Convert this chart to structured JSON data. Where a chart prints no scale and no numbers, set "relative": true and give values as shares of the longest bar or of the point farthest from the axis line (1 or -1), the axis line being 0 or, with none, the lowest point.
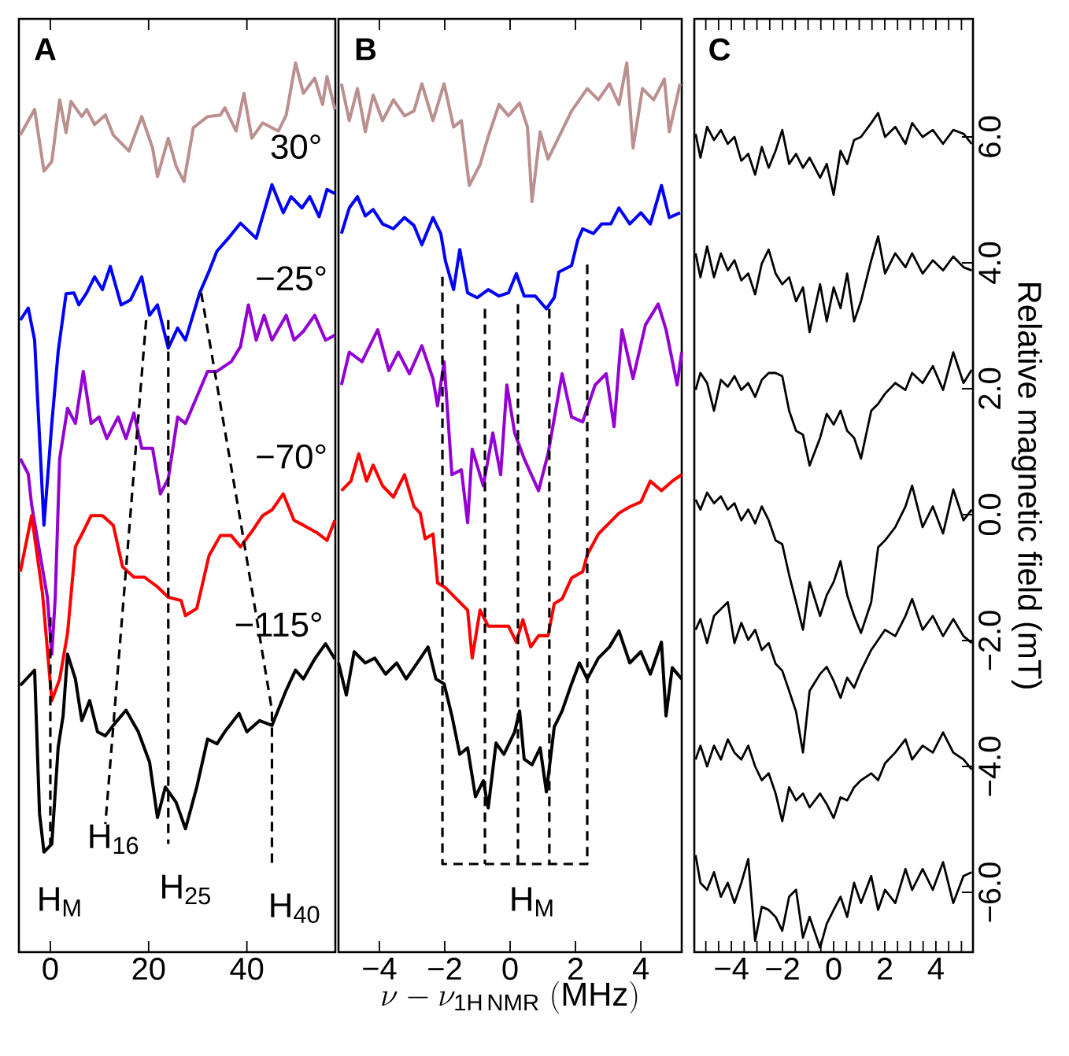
{
  "chart_data": [
    {
      "type": "line",
      "title": "A",
      "relative": true,
      "tick_labels": "x",
      "xlim": [
        -6.4,
        58
      ],
      "xticks": [
        0,
        20,
        40
      ],
      "series": [
        {
          "color": "#bc8f8f",
          "x": [
            -6.1,
            -3.2,
            -1.3,
            0.3,
            1.9,
            3.2,
            4.2,
            6.4,
            7.4,
            9.0,
            11.2,
            12.8,
            16.0,
            18.6,
            20.8,
            21.8,
            24.0,
            25.6,
            27.2,
            29.1,
            32.0,
            34.6,
            35.5,
            37.8,
            39.4,
            41.0,
            43.2,
            46.4,
            48.0,
            49.9,
            51.5,
            53.8,
            55.4,
            56.3,
            57.9
          ],
          "values": [
            0.91,
            0.942,
            0.865,
            0.877,
            0.954,
            0.913,
            0.952,
            0.933,
            0.942,
            0.923,
            0.935,
            0.91,
            0.89,
            0.933,
            0.894,
            0.858,
            0.906,
            0.871,
            0.852,
            0.919,
            0.933,
            0.935,
            0.944,
            0.915,
            0.962,
            0.906,
            0.925,
            0.915,
            0.935,
            1.0,
            0.962,
            0.981,
            0.948,
            0.983,
            0.942
          ]
        },
        {
          "color": "#0000ff",
          "x": [
            -6.1,
            -4.5,
            -3.2,
            -1.3,
            0.3,
            1.6,
            3.2,
            4.8,
            5.8,
            7.4,
            9.0,
            10.6,
            12.2,
            14.4,
            16.3,
            18.6,
            20.2,
            21.8,
            24.0,
            25.9,
            27.5,
            30.4,
            32.3,
            33.9,
            36.2,
            38.7,
            41.9,
            45.1,
            47.4,
            49.0,
            51.2,
            52.8,
            54.7,
            56.3,
            57.9
          ],
          "values": [
            0.679,
            0.694,
            0.654,
            0.423,
            0.55,
            0.64,
            0.712,
            0.713,
            0.698,
            0.713,
            0.733,
            0.717,
            0.746,
            0.698,
            0.704,
            0.733,
            0.685,
            0.698,
            0.644,
            0.669,
            0.654,
            0.713,
            0.74,
            0.765,
            0.781,
            0.8,
            0.781,
            0.848,
            0.813,
            0.833,
            0.819,
            0.833,
            0.808,
            0.842,
            0.837
          ]
        },
        {
          "color": "#9400d3",
          "x": [
            -6.1,
            -4.5,
            -3.8,
            -0.6,
            0.3,
            1.0,
            1.9,
            3.5,
            5.1,
            6.7,
            8.3,
            9.9,
            11.5,
            13.8,
            15.4,
            17.0,
            18.6,
            20.8,
            22.4,
            24.0,
            25.9,
            27.5,
            29.8,
            32.0,
            33.9,
            36.8,
            38.7,
            40.3,
            41.9,
            43.5,
            45.1,
            48.0,
            49.6,
            51.5,
            53.8,
            56.0,
            57.9
          ],
          "values": [
            0.506,
            0.487,
            0.448,
            0.333,
            0.262,
            0.333,
            0.506,
            0.569,
            0.55,
            0.615,
            0.55,
            0.558,
            0.531,
            0.558,
            0.531,
            0.563,
            0.519,
            0.519,
            0.462,
            0.481,
            0.558,
            0.55,
            0.583,
            0.615,
            0.615,
            0.627,
            0.646,
            0.698,
            0.654,
            0.685,
            0.654,
            0.685,
            0.654,
            0.665,
            0.685,
            0.654,
            0.66
          ]
        },
        {
          "color": "#ff0000",
          "x": [
            -6.1,
            -3.8,
            -1.6,
            0.3,
            1.9,
            3.5,
            5.1,
            6.7,
            8.3,
            10.6,
            12.8,
            14.7,
            17.0,
            19.2,
            21.8,
            24.0,
            26.6,
            27.5,
            29.8,
            32.3,
            34.6,
            36.8,
            38.7,
            41.0,
            43.2,
            45.1,
            47.4,
            49.6,
            51.5,
            54.4,
            56.3,
            57.9
          ],
          "values": [
            0.365,
            0.435,
            0.338,
            0.204,
            0.231,
            0.288,
            0.396,
            0.415,
            0.435,
            0.435,
            0.423,
            0.371,
            0.358,
            0.358,
            0.346,
            0.333,
            0.329,
            0.31,
            0.319,
            0.385,
            0.41,
            0.41,
            0.396,
            0.415,
            0.435,
            0.442,
            0.462,
            0.429,
            0.423,
            0.413,
            0.404,
            0.429
          ]
        },
        {
          "color": "#000000",
          "x": [
            -6.1,
            -3.2,
            -2.2,
            -1.3,
            0.3,
            1.6,
            2.6,
            3.5,
            5.1,
            6.4,
            8.0,
            9.6,
            11.2,
            12.8,
            15.4,
            17.9,
            20.2,
            21.8,
            23.4,
            25.6,
            27.5,
            29.8,
            32.0,
            33.9,
            35.5,
            38.4,
            40.0,
            42.6,
            45.1,
            48.0,
            49.9,
            51.5,
            53.8,
            56.0,
            57.9
          ],
          "values": [
            0.223,
            0.242,
            0.063,
            0.015,
            0.025,
            0.146,
            0.185,
            0.262,
            0.231,
            0.179,
            0.204,
            0.165,
            0.16,
            0.173,
            0.192,
            0.165,
            0.127,
            0.058,
            0.096,
            0.077,
            0.044,
            0.096,
            0.156,
            0.15,
            0.165,
            0.188,
            0.165,
            0.179,
            0.173,
            0.217,
            0.242,
            0.231,
            0.256,
            0.275,
            0.256
          ]
        },
        {
          "color": "#000000",
          "line_style": "dashed",
          "x": [
            0,
            0
          ],
          "values": [
            0.308,
            0.025
          ]
        },
        {
          "color": "#000000",
          "line_style": "dashed",
          "x": [
            19.5,
            11.2
          ],
          "values": [
            0.679,
            0.05
          ]
        },
        {
          "color": "#000000",
          "line_style": "dashed",
          "x": [
            24,
            24
          ],
          "values": [
            0.679,
            0.025
          ]
        },
        {
          "color": "#000000",
          "line_style": "dashed",
          "x": [
            30.7,
            38.7,
            45.1,
            45.1
          ],
          "values": [
            0.713,
            0.428,
            0.192,
            0
          ]
        }
      ],
      "annotations": [
        "30°",
        "−25°",
        "−70°",
        "−115°",
        "H$_{M}$",
        "H$_{16}$",
        "H$_{25}$",
        "H$_{40}$"
      ]
    },
    {
      "type": "line",
      "title": "B",
      "relative": true,
      "tick_labels": "x",
      "xlim": [
        -5.25,
        5.25
      ],
      "xlabel": "\\nu-\\nu_{\\mathrm{1H\\,NMR}}\\ (\\mathrm{MHz})",
      "xticks": [
        {
          "value": -4,
          "label": "−4"
        },
        {
          "value": -2,
          "label": "−2"
        },
        0,
        2,
        4
      ],
      "series": [
        {
          "color": "#bc8f8f",
          "x": [
            -5.16,
            -4.92,
            -4.67,
            -4.43,
            -4.19,
            -3.9,
            -3.57,
            -3.23,
            -2.94,
            -2.7,
            -2.36,
            -2.02,
            -1.73,
            -1.49,
            -1.25,
            -0.92,
            -0.67,
            -0.34,
            -0.05,
            0.29,
            0.53,
            0.67,
            0.92,
            1.16,
            1.4,
            1.88,
            2.36,
            2.7,
            3.04,
            3.33,
            3.57,
            3.76,
            4.05,
            4.39,
            4.72,
            4.87,
            5.2
          ],
          "values": [
            0.974,
            0.928,
            0.968,
            0.914,
            0.96,
            0.928,
            0.954,
            0.934,
            0.94,
            0.974,
            0.928,
            0.974,
            0.92,
            0.928,
            0.847,
            0.873,
            0.908,
            0.948,
            0.934,
            0.95,
            0.92,
            0.827,
            0.914,
            0.88,
            0.9,
            0.94,
            0.968,
            0.954,
            0.974,
            0.948,
            1.0,
            0.894,
            0.968,
            0.954,
            0.98,
            0.914,
            0.974
          ]
        },
        {
          "color": "#0000ff",
          "x": [
            -5.16,
            -4.92,
            -4.67,
            -4.43,
            -4.19,
            -3.9,
            -3.57,
            -3.23,
            -2.94,
            -2.7,
            -2.36,
            -2.12,
            -1.98,
            -1.73,
            -1.54,
            -1.3,
            -1.01,
            -0.67,
            -0.34,
            -0.05,
            0.19,
            0.43,
            0.77,
            1.11,
            1.35,
            1.49,
            1.88,
            2.07,
            2.22,
            2.55,
            2.8,
            3.08,
            3.33,
            3.66,
            4.0,
            4.29,
            4.63,
            4.87,
            5.2
          ],
          "values": [
            0.787,
            0.819,
            0.833,
            0.809,
            0.817,
            0.799,
            0.793,
            0.807,
            0.797,
            0.773,
            0.807,
            0.787,
            0.753,
            0.717,
            0.767,
            0.713,
            0.707,
            0.717,
            0.709,
            0.713,
            0.737,
            0.709,
            0.709,
            0.693,
            0.707,
            0.739,
            0.747,
            0.779,
            0.793,
            0.787,
            0.799,
            0.799,
            0.819,
            0.799,
            0.813,
            0.799,
            0.847,
            0.807,
            0.813
          ]
        },
        {
          "color": "#9400d3",
          "x": [
            -5.16,
            -4.92,
            -4.53,
            -4.05,
            -3.71,
            -3.42,
            -3.08,
            -2.7,
            -2.36,
            -2.22,
            -2.02,
            -1.78,
            -1.49,
            -1.3,
            -1.16,
            -0.82,
            -0.53,
            -0.29,
            -0.1,
            0.14,
            0.43,
            0.87,
            1.16,
            1.59,
            1.88,
            2.22,
            2.6,
            2.94,
            3.18,
            3.42,
            3.76,
            4.14,
            4.53,
            4.77,
            5.11,
            5.25
          ],
          "values": [
            0.598,
            0.639,
            0.627,
            0.667,
            0.616,
            0.639,
            0.612,
            0.647,
            0.606,
            0.572,
            0.627,
            0.486,
            0.492,
            0.426,
            0.518,
            0.472,
            0.538,
            0.486,
            0.598,
            0.538,
            0.506,
            0.466,
            0.512,
            0.612,
            0.558,
            0.552,
            0.598,
            0.612,
            0.546,
            0.667,
            0.606,
            0.673,
            0.699,
            0.667,
            0.598,
            0.639
          ]
        },
        {
          "color": "#ff0000",
          "x": [
            -5.16,
            -4.87,
            -4.63,
            -4.39,
            -4.19,
            -3.9,
            -3.57,
            -3.23,
            -2.94,
            -2.75,
            -2.6,
            -2.36,
            -2.22,
            -1.98,
            -1.64,
            -1.3,
            -1.16,
            -0.92,
            -0.67,
            -0.34,
            -0.05,
            0.19,
            0.39,
            0.63,
            0.87,
            1.16,
            1.35,
            1.59,
            1.88,
            2.22,
            2.36,
            2.7,
            3.04,
            3.33,
            3.66,
            4.0,
            4.29,
            4.63,
            4.96,
            5.25
          ],
          "values": [
            0.466,
            0.478,
            0.512,
            0.478,
            0.498,
            0.472,
            0.458,
            0.486,
            0.446,
            0.438,
            0.406,
            0.412,
            0.351,
            0.345,
            0.331,
            0.317,
            0.257,
            0.317,
            0.297,
            0.297,
            0.297,
            0.277,
            0.305,
            0.271,
            0.285,
            0.285,
            0.325,
            0.331,
            0.357,
            0.365,
            0.386,
            0.412,
            0.426,
            0.438,
            0.446,
            0.452,
            0.478,
            0.466,
            0.478,
            0.486
          ]
        },
        {
          "color": "#000000",
          "x": [
            -5.25,
            -5.01,
            -4.77,
            -4.43,
            -4.14,
            -3.81,
            -3.47,
            -3.18,
            -2.84,
            -2.51,
            -2.27,
            -2.02,
            -1.78,
            -1.54,
            -1.3,
            -1.06,
            -0.82,
            -0.67,
            -0.43,
            -0.19,
            0.14,
            0.29,
            0.43,
            0.67,
            0.92,
            1.11,
            1.35,
            1.59,
            1.88,
            2.12,
            2.36,
            2.7,
            3.04,
            3.33,
            3.66,
            4.0,
            4.29,
            4.63,
            4.77,
            4.96,
            5.25
          ],
          "values": [
            0.251,
            0.211,
            0.265,
            0.251,
            0.257,
            0.237,
            0.251,
            0.231,
            0.251,
            0.271,
            0.231,
            0.225,
            0.185,
            0.137,
            0.145,
            0.084,
            0.104,
            0.07,
            0.151,
            0.137,
            0.165,
            0.191,
            0.131,
            0.124,
            0.145,
            0.09,
            0.171,
            0.191,
            0.225,
            0.251,
            0.231,
            0.257,
            0.271,
            0.291,
            0.251,
            0.265,
            0.237,
            0.277,
            0.185,
            0.245,
            0.231
          ]
        },
        {
          "color": "#000000",
          "line_style": "dashed",
          "x": [
            -2.07,
            -2.07,
            2.36,
            2.36
          ],
          "values": [
            0.733,
            0,
            0,
            0.753
          ]
        },
        {
          "color": "#000000",
          "line_style": "dashed",
          "x": [
            -0.77,
            -0.77
          ],
          "values": [
            0.693,
            0
          ]
        },
        {
          "color": "#000000",
          "line_style": "dashed",
          "x": [
            0.24,
            0.24
          ],
          "values": [
            0.699,
            0
          ]
        },
        {
          "color": "#000000",
          "line_style": "dashed",
          "x": [
            1.2,
            1.2
          ],
          "values": [
            0.693,
            0
          ]
        }
      ],
      "annotations": [
        "H$_{M}$"
      ]
    },
    {
      "type": "line",
      "title": "C",
      "ylabel": "Relative magnetic field (mT)",
      "xlim": [
        -5.45,
        5.45
      ],
      "ylim": [
        -6.95,
        7.875
      ],
      "xticks": [
        {
          "value": -5,
          "label": null
        },
        {
          "value": -4.5,
          "label": null
        },
        {
          "value": -4,
          "label": "−4"
        },
        {
          "value": -3.5,
          "label": null
        },
        {
          "value": -3,
          "label": null
        },
        {
          "value": -2.5,
          "label": null
        },
        {
          "value": -2,
          "label": "−2"
        },
        {
          "value": -1.5,
          "label": null
        },
        {
          "value": -1,
          "label": null
        },
        {
          "value": -0.5,
          "label": null
        },
        0,
        {
          "value": 0.5,
          "label": null
        },
        {
          "value": 1,
          "label": null
        },
        {
          "value": 1.5,
          "label": null
        },
        2,
        {
          "value": 2.5,
          "label": null
        },
        {
          "value": 3,
          "label": null
        },
        {
          "value": 3.5,
          "label": null
        },
        4,
        {
          "value": 4.5,
          "label": null
        },
        {
          "value": 5,
          "label": null
        }
      ],
      "yticks": [
        {
          "value": -6,
          "label": "−6.0"
        },
        {
          "value": -4,
          "label": "−4.0"
        },
        {
          "value": -2,
          "label": "−2.0"
        },
        {
          "value": 0,
          "label": "0.0"
        },
        {
          "value": 2,
          "label": "2.0"
        },
        {
          "value": 4,
          "label": "4.0"
        },
        {
          "value": 6,
          "label": "6.0"
        }
      ],
      "x": [
        -5.4,
        -5.21,
        -4.95,
        -4.68,
        -4.41,
        -4.14,
        -3.88,
        -3.61,
        -3.34,
        -3.07,
        -2.81,
        -2.54,
        -2.27,
        -2.01,
        -1.74,
        -1.47,
        -1.2,
        -0.94,
        -0.53,
        -0.27,
        0,
        0.27,
        0.53,
        0.8,
        1.07,
        1.47,
        1.74,
        2.01,
        2.41,
        2.81,
        3.07,
        3.48,
        3.88,
        4.28,
        4.68,
        5.08,
        5.4
      ],
      "series": [
        {
          "color": "#000000",
          "values": [
            6.05,
            5.67,
            6.16,
            5.95,
            6.11,
            5.89,
            6.0,
            5.62,
            5.73,
            5.4,
            5.84,
            5.51,
            5.78,
            6.11,
            5.57,
            5.73,
            5.51,
            5.67,
            5.35,
            5.57,
            5.08,
            5.78,
            5.57,
            5.95,
            6.0,
            6.22,
            6.38,
            6.0,
            6.16,
            5.89,
            6.22,
            6.0,
            6.11,
            5.89,
            6.11,
            6.05,
            5.89
          ]
        },
        {
          "color": "#000000",
          "values": [
            4.15,
            3.77,
            4.26,
            3.77,
            4.15,
            3.88,
            4.04,
            3.72,
            3.83,
            3.5,
            3.99,
            4.21,
            3.83,
            3.66,
            3.77,
            3.39,
            3.61,
            2.9,
            3.66,
            3.07,
            3.61,
            3.28,
            3.83,
            3.07,
            3.39,
            4.04,
            4.42,
            3.83,
            4.15,
            3.93,
            4.15,
            3.83,
            4.04,
            3.88,
            4.1,
            3.93,
            3.88
          ]
        },
        {
          "color": "#000000",
          "values": [
            1.98,
            2.25,
            2.09,
            1.65,
            2.14,
            2.03,
            2.2,
            1.98,
            2.09,
            1.87,
            2.14,
            2.25,
            2.25,
            2.2,
            1.65,
            1.33,
            1.27,
            0.78,
            1.22,
            1.6,
            1.43,
            1.65,
            1.33,
            1.22,
            0.89,
            1.65,
            1.76,
            1.92,
            2.09,
            1.98,
            2.25,
            2.09,
            2.36,
            1.98,
            2.58,
            2.09,
            2.3
          ]
        },
        {
          "color": "#000000",
          "values": [
            0.24,
            0.08,
            0.35,
            0.18,
            0.29,
            0.08,
            0.18,
            -0.09,
            0.08,
            -0.14,
            0.13,
            -0.09,
            -0.41,
            -0.47,
            -0.96,
            -1.39,
            -1.83,
            -1.07,
            -1.61,
            -1.28,
            -1.07,
            -0.74,
            -1.28,
            -1.61,
            -1.88,
            -1.39,
            -0.52,
            -0.41,
            -0.2,
            0.13,
            0.46,
            -0.2,
            0.13,
            -0.3,
            0.4,
            -0.09,
            0.08
          ]
        },
        {
          "color": "#000000",
          "values": [
            -1.83,
            -1.66,
            -2.04,
            -1.61,
            -1.5,
            -1.39,
            -2.04,
            -1.72,
            -1.99,
            -1.83,
            -2.15,
            -2.04,
            -2.37,
            -2.48,
            -2.8,
            -3.13,
            -3.78,
            -2.8,
            -2.53,
            -2.42,
            -2.64,
            -2.91,
            -2.59,
            -2.75,
            -2.48,
            -2.15,
            -1.99,
            -1.83,
            -1.93,
            -1.61,
            -1.34,
            -1.83,
            -1.61,
            -1.93,
            -1.66,
            -1.93,
            -2.04
          ]
        },
        {
          "color": "#000000",
          "values": [
            -3.89,
            -3.67,
            -4.0,
            -3.67,
            -3.89,
            -3.57,
            -3.78,
            -3.89,
            -3.67,
            -4.0,
            -4.22,
            -4.11,
            -4.43,
            -4.87,
            -4.33,
            -4.54,
            -4.43,
            -4.65,
            -4.43,
            -4.6,
            -4.82,
            -4.49,
            -4.54,
            -4.33,
            -4.22,
            -4.11,
            -4.22,
            -3.95,
            -3.78,
            -3.57,
            -3.89,
            -3.67,
            -3.78,
            -3.46,
            -3.78,
            -3.89,
            -4.05
          ]
        },
        {
          "color": "#000000",
          "values": [
            -5.41,
            -5.85,
            -5.96,
            -5.68,
            -6.07,
            -5.85,
            -6.17,
            -5.85,
            -5.47,
            -6.77,
            -6.23,
            -6.28,
            -6.39,
            -6.61,
            -6.07,
            -5.96,
            -6.72,
            -6.39,
            -6.88,
            -6.5,
            -6.28,
            -6.07,
            -6.39,
            -5.85,
            -6.17,
            -5.74,
            -6.28,
            -5.96,
            -6.17,
            -5.63,
            -5.96,
            -5.63,
            -5.96,
            -5.52,
            -6.17,
            -5.74,
            -5.68
          ]
        }
      ]
    }
  ]
}
